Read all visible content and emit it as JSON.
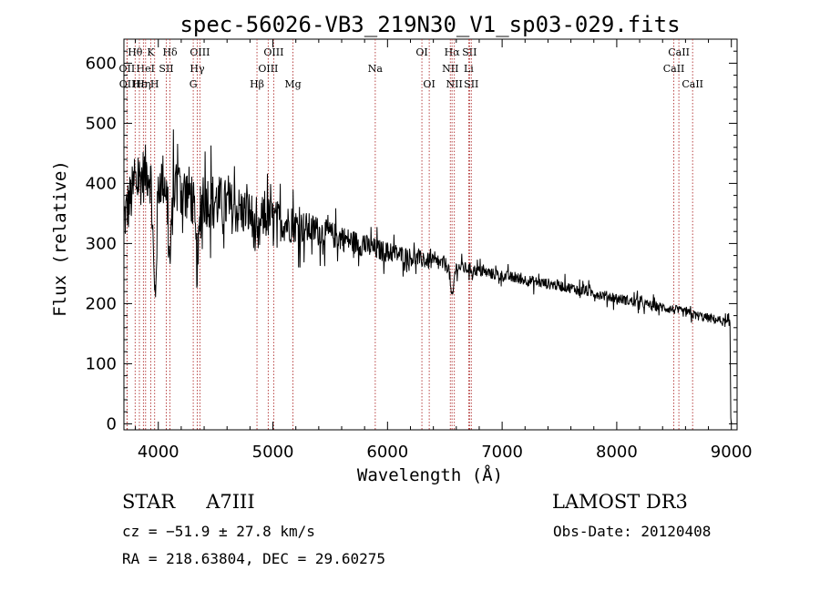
{
  "chart_data": {
    "type": "line",
    "title": "spec-56026-VB3_219N30_V1_sp03-029.fits",
    "xlabel": "Wavelength (Å)",
    "ylabel": "Flux (relative)",
    "xlim": [
      3700,
      9050
    ],
    "ylim": [
      -10,
      640
    ],
    "xticks": [
      4000,
      5000,
      6000,
      7000,
      8000,
      9000
    ],
    "yticks": [
      0,
      100,
      200,
      300,
      400,
      500,
      600
    ],
    "grid": false,
    "line_color": "#000000",
    "marker_color": "#b03030",
    "continuum": {
      "x": [
        3700,
        3800,
        3900,
        4000,
        4100,
        4200,
        4300,
        4500,
        4700,
        4900,
        5100,
        5300,
        5500,
        5700,
        5900,
        6100,
        6300,
        6500,
        6700,
        6900,
        7100,
        7300,
        7500,
        7700,
        7900,
        8100,
        8300,
        8500,
        8700,
        8900,
        8990
      ],
      "y": [
        340,
        400,
        420,
        410,
        400,
        390,
        380,
        370,
        355,
        345,
        335,
        325,
        315,
        303,
        290,
        282,
        273,
        265,
        258,
        250,
        243,
        236,
        230,
        222,
        213,
        205,
        197,
        190,
        180,
        172,
        165
      ]
    },
    "absorption_features": [
      {
        "x": 3970,
        "depth": 200,
        "width": 15
      },
      {
        "x": 4101,
        "depth": 130,
        "width": 15
      },
      {
        "x": 4340,
        "depth": 110,
        "width": 18
      },
      {
        "x": 4861,
        "depth": 50,
        "width": 20
      },
      {
        "x": 6563,
        "depth": 55,
        "width": 14
      }
    ],
    "line_markers": [
      {
        "label": "Hθ",
        "x": 3798,
        "row": 0
      },
      {
        "label": "K",
        "x": 3934,
        "row": 0
      },
      {
        "label": "Hδ",
        "x": 4102,
        "row": 0
      },
      {
        "label": "OIII",
        "x": 4363,
        "row": 0
      },
      {
        "label": "OIII",
        "x": 5007,
        "row": 0
      },
      {
        "label": "OI",
        "x": 6300,
        "row": 0
      },
      {
        "label": "Hα",
        "x": 6563,
        "row": 0
      },
      {
        "label": "SII",
        "x": 6716,
        "row": 0
      },
      {
        "label": "CaII",
        "x": 8542,
        "row": 0
      },
      {
        "label": "OII",
        "x": 3727,
        "row": 1
      },
      {
        "label": "HeI",
        "x": 3889,
        "row": 1
      },
      {
        "label": "SII",
        "x": 4070,
        "row": 1
      },
      {
        "label": "Hγ",
        "x": 4340,
        "row": 1
      },
      {
        "label": "OIII",
        "x": 4959,
        "row": 1
      },
      {
        "label": "Na",
        "x": 5893,
        "row": 1
      },
      {
        "label": "NII",
        "x": 6548,
        "row": 1
      },
      {
        "label": "Li",
        "x": 6708,
        "row": 1
      },
      {
        "label": "CaII",
        "x": 8498,
        "row": 1
      },
      {
        "label": "OII",
        "x": 3729,
        "row": 2
      },
      {
        "label": "Hε",
        "x": 3835,
        "row": 2
      },
      {
        "label": "Hη",
        "x": 3870,
        "row": 2
      },
      {
        "label": "H",
        "x": 3968,
        "row": 2
      },
      {
        "label": "G",
        "x": 4305,
        "row": 2
      },
      {
        "label": "Hβ",
        "x": 4861,
        "row": 2
      },
      {
        "label": "Mg",
        "x": 5175,
        "row": 2
      },
      {
        "label": "OI",
        "x": 6364,
        "row": 2
      },
      {
        "label": "NII",
        "x": 6583,
        "row": 2
      },
      {
        "label": "SII",
        "x": 6731,
        "row": 2
      },
      {
        "label": "CaII",
        "x": 8662,
        "row": 2
      }
    ]
  },
  "info": {
    "class": "STAR",
    "subclass": "A7III",
    "survey": "LAMOST DR3",
    "cz": "cz = −51.9 ± 27.8 km/s",
    "obs_date": "Obs-Date: 20120408",
    "coords": "RA = 218.63804, DEC =  29.60275"
  }
}
